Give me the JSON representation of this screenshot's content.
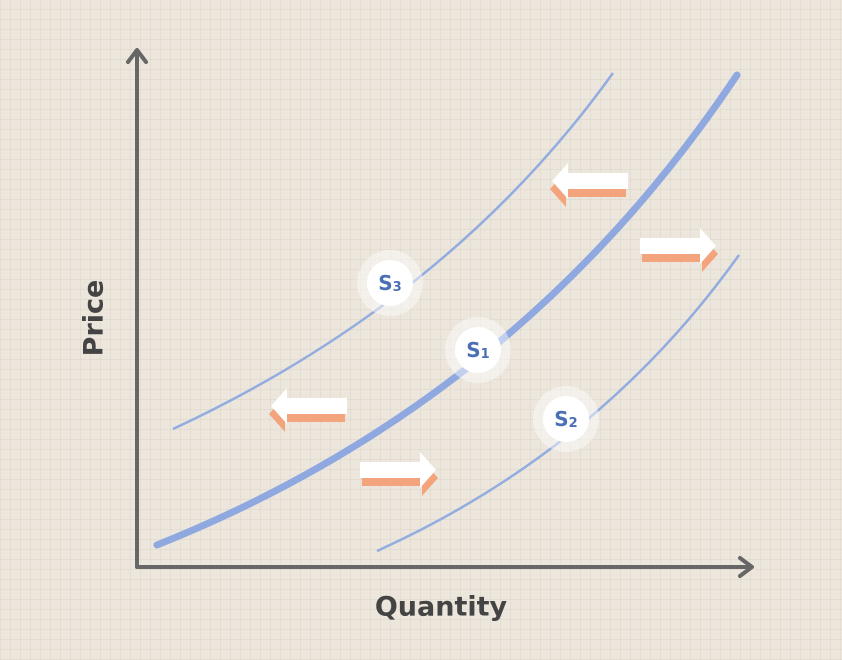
{
  "axes": {
    "y_label": "Price",
    "x_label": "Quantity"
  },
  "curves": [
    {
      "base": "S",
      "sub": "1"
    },
    {
      "base": "S",
      "sub": "2"
    },
    {
      "base": "S",
      "sub": "3"
    }
  ]
}
